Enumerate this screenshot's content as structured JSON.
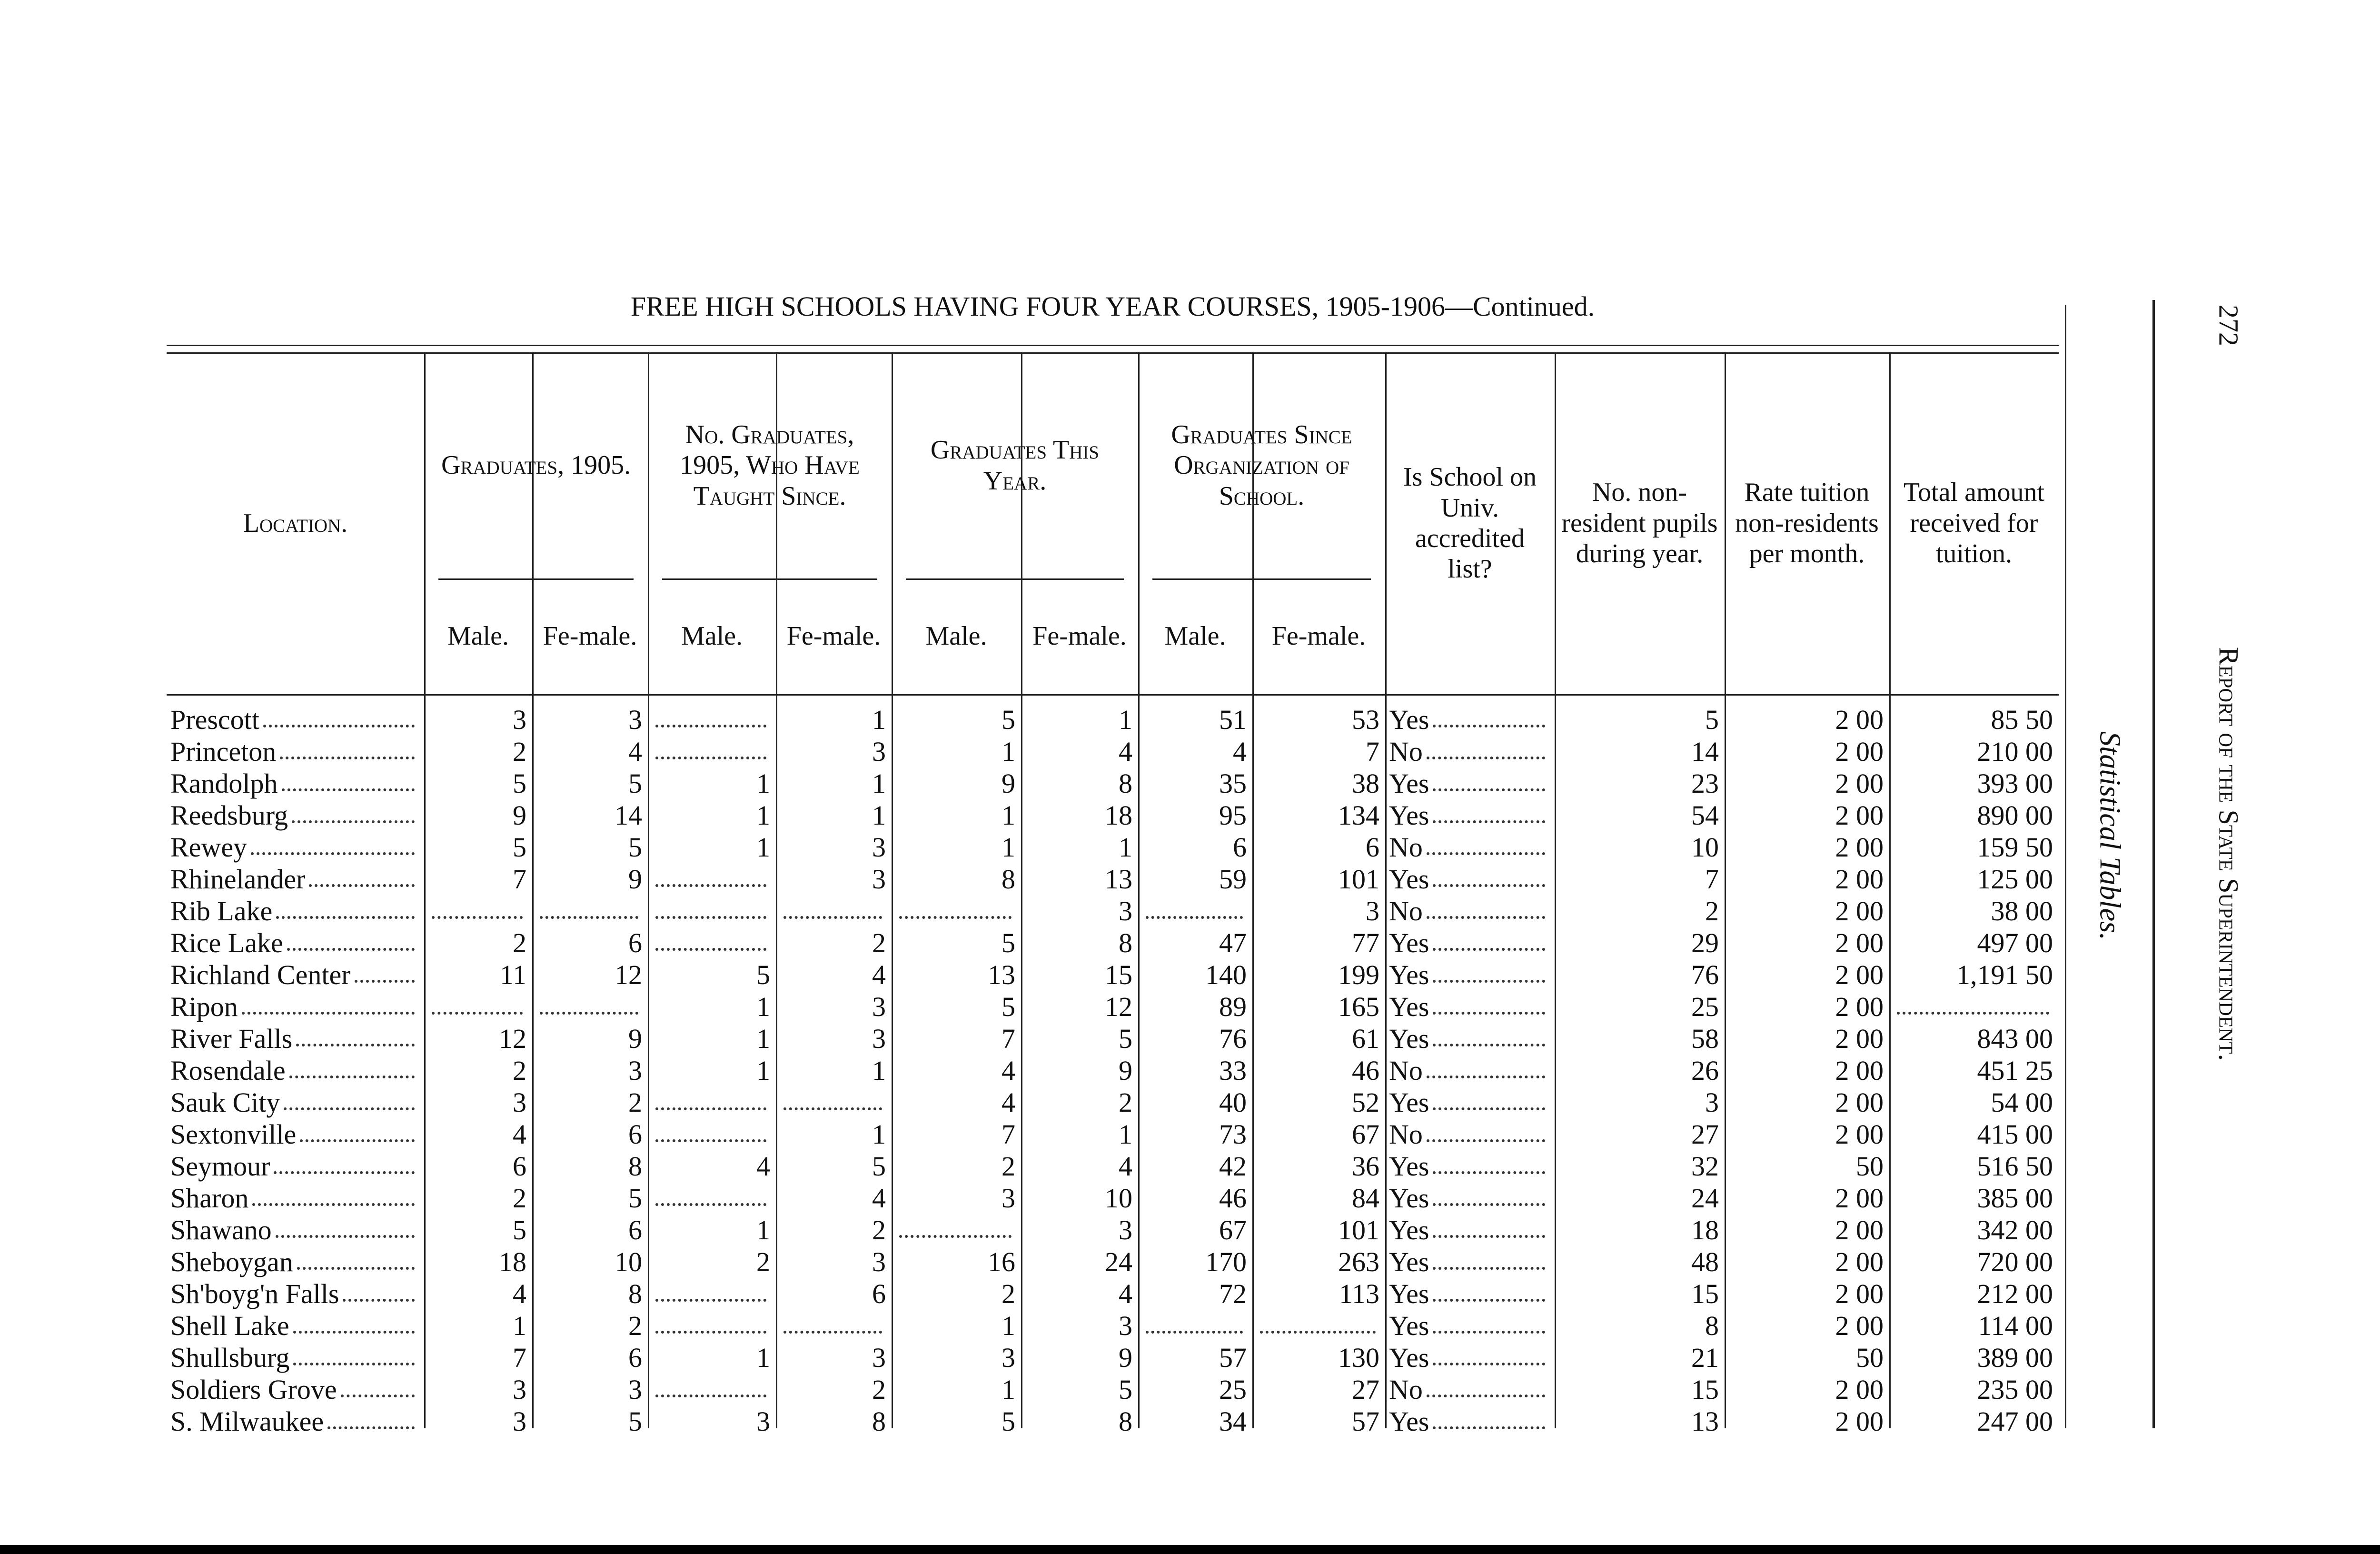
{
  "page_number": "272",
  "running_head": "Report of the State Superintendent.",
  "side_title": "Statistical Tables.",
  "title": "FREE HIGH SCHOOLS HAVING FOUR YEAR COURSES, 1905-1906—Continued.",
  "table": {
    "headers": [
      "Location.",
      "Graduates, 1905.",
      "No. Graduates, 1905, Who Have Taught Since.",
      "Graduates This Year.",
      "Graduates Since Organization of School.",
      "Is School on Univ. accredited list?",
      "No. non-resident pupils during year.",
      "Rate tuition non-residents per month.",
      "Total amount received for tuition."
    ],
    "subheaders": [
      [
        "Male.",
        "Fe-male."
      ],
      [
        "Male.",
        "Fe-male."
      ],
      [
        "Male.",
        "Fe-male."
      ],
      [
        "Male.",
        "Fe-male."
      ]
    ],
    "rows": [
      [
        "Prescott",
        3,
        3,
        null,
        1,
        5,
        1,
        51,
        53,
        "Yes",
        5,
        "2 00",
        "85 50"
      ],
      [
        "Princeton",
        2,
        4,
        null,
        3,
        1,
        4,
        4,
        7,
        "No",
        14,
        "2 00",
        "210 00"
      ],
      [
        "Randolph",
        5,
        5,
        1,
        1,
        9,
        8,
        35,
        38,
        "Yes",
        23,
        "2 00",
        "393 00"
      ],
      [
        "Reedsburg",
        9,
        14,
        1,
        1,
        1,
        18,
        95,
        134,
        "Yes",
        54,
        "2 00",
        "890 00"
      ],
      [
        "Rewey",
        5,
        5,
        1,
        3,
        1,
        1,
        6,
        6,
        "No",
        10,
        "2 00",
        "159 50"
      ],
      [
        "Rhinelander",
        7,
        9,
        null,
        3,
        8,
        13,
        59,
        101,
        "Yes",
        7,
        "2 00",
        "125 00"
      ],
      [
        "Rib Lake",
        null,
        null,
        null,
        null,
        null,
        3,
        null,
        3,
        "No",
        2,
        "2 00",
        "38 00"
      ],
      [
        "Rice Lake",
        2,
        6,
        null,
        2,
        5,
        8,
        47,
        77,
        "Yes",
        29,
        "2 00",
        "497 00"
      ],
      [
        "Richland Center",
        11,
        12,
        5,
        4,
        13,
        15,
        140,
        199,
        "Yes",
        76,
        "2 00",
        "1,191 50"
      ],
      [
        "Ripon",
        null,
        null,
        1,
        3,
        5,
        12,
        89,
        165,
        "Yes",
        25,
        "2 00",
        null
      ],
      [
        "River Falls",
        12,
        9,
        1,
        3,
        7,
        5,
        76,
        61,
        "Yes",
        58,
        "2 00",
        "843 00"
      ],
      [
        "Rosendale",
        2,
        3,
        1,
        1,
        4,
        9,
        33,
        46,
        "No",
        26,
        "2 00",
        "451 25"
      ],
      [
        "Sauk City",
        3,
        2,
        null,
        null,
        4,
        2,
        40,
        52,
        "Yes",
        3,
        "2 00",
        "54 00"
      ],
      [
        "Sextonville",
        4,
        6,
        null,
        1,
        7,
        1,
        73,
        67,
        "No",
        27,
        "2 00",
        "415 00"
      ],
      [
        "Seymour",
        6,
        8,
        4,
        5,
        2,
        4,
        42,
        36,
        "Yes",
        32,
        "50",
        "516 50"
      ],
      [
        "Sharon",
        2,
        5,
        null,
        4,
        3,
        10,
        46,
        84,
        "Yes",
        24,
        "2 00",
        "385 00"
      ],
      [
        "Shawano",
        5,
        6,
        1,
        2,
        null,
        3,
        67,
        101,
        "Yes",
        18,
        "2 00",
        "342 00"
      ],
      [
        "Sheboygan",
        18,
        10,
        2,
        3,
        16,
        24,
        170,
        263,
        "Yes",
        48,
        "2 00",
        "720 00"
      ],
      [
        "Sh'boyg'n Falls",
        4,
        8,
        null,
        6,
        2,
        4,
        72,
        113,
        "Yes",
        15,
        "2 00",
        "212 00"
      ],
      [
        "Shell Lake",
        1,
        2,
        null,
        null,
        1,
        3,
        null,
        null,
        "Yes",
        8,
        "2 00",
        "114 00"
      ],
      [
        "Shullsburg",
        7,
        6,
        1,
        3,
        3,
        9,
        57,
        130,
        "Yes",
        21,
        "50",
        "389 00"
      ],
      [
        "Soldiers Grove",
        3,
        3,
        null,
        2,
        1,
        5,
        25,
        27,
        "No",
        15,
        "2 00",
        "235 00"
      ],
      [
        "S. Milwaukee",
        3,
        5,
        3,
        8,
        5,
        8,
        34,
        57,
        "Yes",
        13,
        "2 00",
        "247 00"
      ]
    ]
  }
}
